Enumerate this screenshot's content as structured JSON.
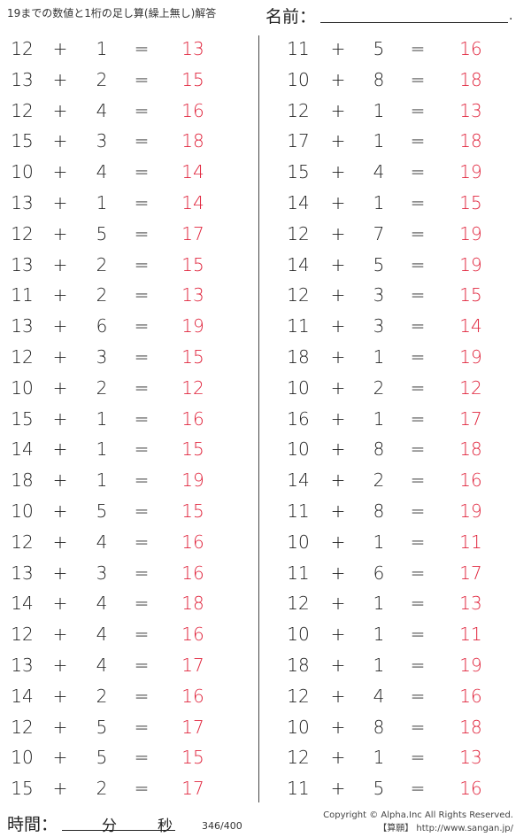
{
  "header": {
    "title": "19までの数値と1桁の足し算(繰上無し)解答",
    "name_label": "名前：",
    "name_dot": "."
  },
  "problems": {
    "operator": "+",
    "equals": "=",
    "left": [
      [
        12,
        1,
        13
      ],
      [
        13,
        2,
        15
      ],
      [
        12,
        4,
        16
      ],
      [
        15,
        3,
        18
      ],
      [
        10,
        4,
        14
      ],
      [
        13,
        1,
        14
      ],
      [
        12,
        5,
        17
      ],
      [
        13,
        2,
        15
      ],
      [
        11,
        2,
        13
      ],
      [
        13,
        6,
        19
      ],
      [
        12,
        3,
        15
      ],
      [
        10,
        2,
        12
      ],
      [
        15,
        1,
        16
      ],
      [
        14,
        1,
        15
      ],
      [
        18,
        1,
        19
      ],
      [
        10,
        5,
        15
      ],
      [
        12,
        4,
        16
      ],
      [
        13,
        3,
        16
      ],
      [
        14,
        4,
        18
      ],
      [
        12,
        4,
        16
      ],
      [
        13,
        4,
        17
      ],
      [
        14,
        2,
        16
      ],
      [
        12,
        5,
        17
      ],
      [
        10,
        5,
        15
      ],
      [
        15,
        2,
        17
      ]
    ],
    "right": [
      [
        11,
        5,
        16
      ],
      [
        10,
        8,
        18
      ],
      [
        12,
        1,
        13
      ],
      [
        17,
        1,
        18
      ],
      [
        15,
        4,
        19
      ],
      [
        14,
        1,
        15
      ],
      [
        12,
        7,
        19
      ],
      [
        14,
        5,
        19
      ],
      [
        12,
        3,
        15
      ],
      [
        11,
        3,
        14
      ],
      [
        18,
        1,
        19
      ],
      [
        10,
        2,
        12
      ],
      [
        16,
        1,
        17
      ],
      [
        10,
        8,
        18
      ],
      [
        14,
        2,
        16
      ],
      [
        11,
        8,
        19
      ],
      [
        10,
        1,
        11
      ],
      [
        11,
        6,
        17
      ],
      [
        12,
        1,
        13
      ],
      [
        10,
        1,
        11
      ],
      [
        18,
        1,
        19
      ],
      [
        12,
        4,
        16
      ],
      [
        10,
        8,
        18
      ],
      [
        12,
        1,
        13
      ],
      [
        11,
        5,
        16
      ]
    ]
  },
  "answer_color": "#e0243c",
  "footer": {
    "time_label": "時間：",
    "minutes": "分",
    "seconds": "秒",
    "page": "346/400",
    "copyright": "Copyright © Alpha.Inc All Rights Reserved.",
    "site": "【算願】 http://www.sangan.jp/"
  }
}
